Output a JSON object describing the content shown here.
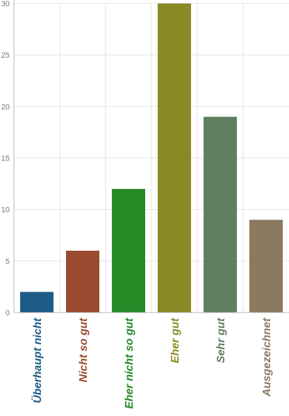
{
  "chart_data": {
    "type": "bar",
    "title": "",
    "xlabel": "",
    "ylabel": "",
    "categories": [
      "Überhaupt nicht",
      "Nicht so gut",
      "Eher nicht so gut",
      "Eher gut",
      "Sehr gut",
      "Ausgezeichnet"
    ],
    "values": [
      2,
      6,
      12,
      30,
      19,
      9
    ],
    "colors": [
      "#1e5b87",
      "#9a4a2f",
      "#268a27",
      "#8a8a25",
      "#607f5e",
      "#8a7a5f"
    ],
    "ylim": [
      0,
      30
    ],
    "yticks": [
      0,
      5,
      10,
      15,
      20,
      25,
      30
    ],
    "grid": true,
    "legend": "none"
  }
}
